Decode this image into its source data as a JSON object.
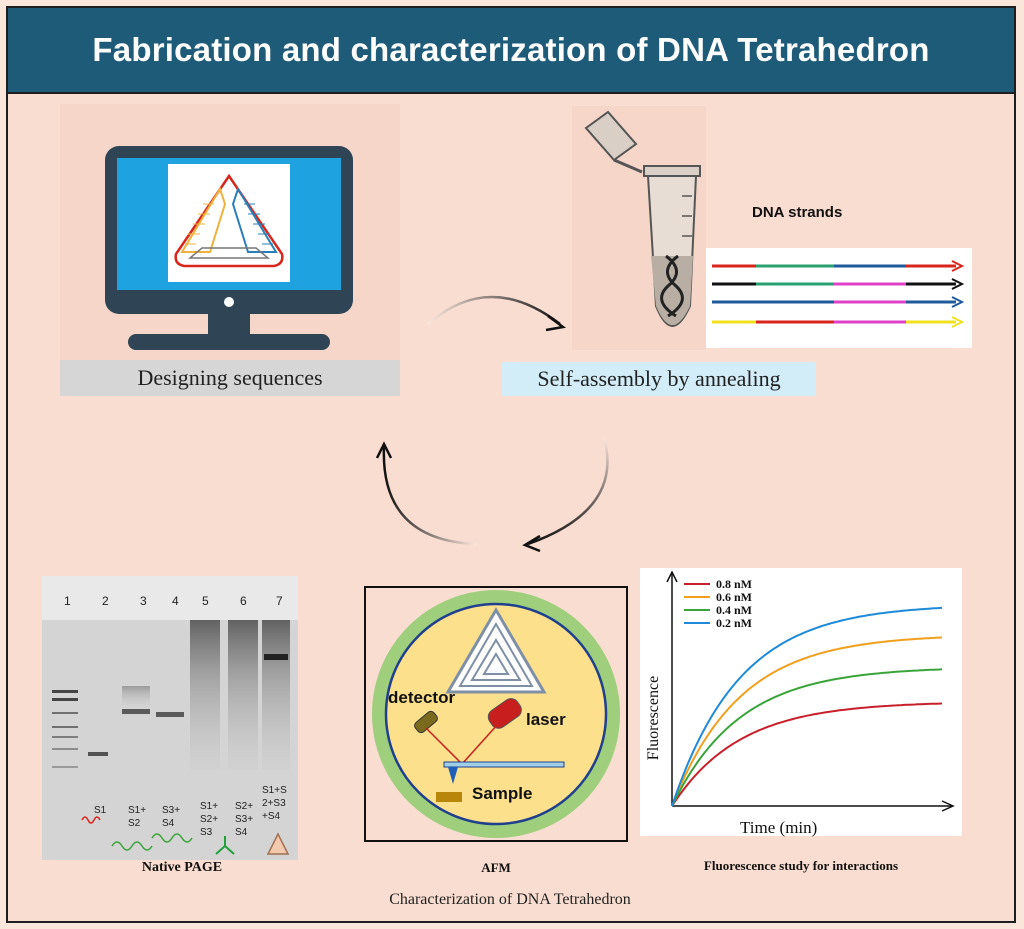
{
  "title": "Fabrication and characterization of DNA Tetrahedron",
  "design": {
    "caption": "Designing sequences"
  },
  "assembly": {
    "caption": "Self-assembly by annealing",
    "strands_label": "DNA strands"
  },
  "gel": {
    "caption": "Native PAGE",
    "lanes": [
      "1",
      "2",
      "3",
      "4",
      "5",
      "6",
      "7"
    ],
    "lane_labels": [
      [
        "S1"
      ],
      [
        "S1+",
        "S2"
      ],
      [
        "S3+",
        "S4"
      ],
      [
        "S1+",
        "S2+",
        "S3"
      ],
      [
        "S2+",
        "S3+",
        "S4"
      ],
      [
        "S1+S",
        "2+S3",
        "+S4"
      ]
    ]
  },
  "afm": {
    "caption": "AFM",
    "detector_label": "detector",
    "laser_label": "laser",
    "sample_label": "Sample"
  },
  "fluorescence": {
    "caption": "Fluorescence study for interactions",
    "chart_data": {
      "type": "line",
      "xlabel": "Time (min)",
      "ylabel": "Fluorescence",
      "legend_position": "top-left",
      "grid": false,
      "series": [
        {
          "name": "0.8 nM",
          "color": "#c8202a",
          "plateau": 0.45
        },
        {
          "name": "0.6 nM",
          "color": "#f0a01e",
          "plateau": 0.74
        },
        {
          "name": "0.4 nM",
          "color": "#3aa43a",
          "plateau": 0.6
        },
        {
          "name": "0.2 nM",
          "color": "#1f8ad8",
          "plateau": 0.87
        }
      ]
    }
  },
  "bottom_caption": "Characterization of DNA Tetrahedron",
  "colors": {
    "header_bg": "#1e5b78",
    "panel_bg": "#f9ddd0",
    "monitor": "#2f4556",
    "screen": "#1fa3e0"
  }
}
